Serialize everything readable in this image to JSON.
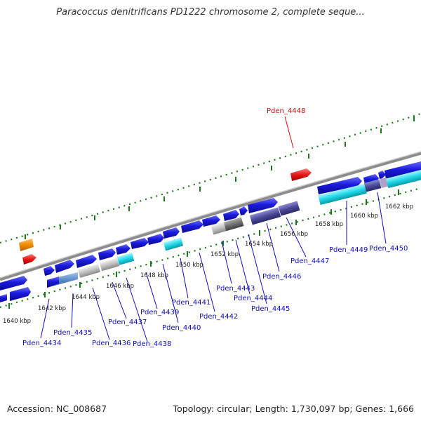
{
  "title": "Paracoccus denitrificans PD1222 chromosome 2, complete seque...",
  "footer": {
    "accession": "Accession: NC_008687",
    "topology": "Topology: circular; Length: 1,730,097 bp; Genes: 1,666"
  },
  "colors": {
    "forward_gene": "#1a1adc",
    "cyan_gene": "#20d8e8",
    "gray_gene": "#c0c0c0",
    "dark_gray_gene": "#707070",
    "slate_gene": "#4a4a9a",
    "orange_gene": "#f08c00",
    "red_gene": "#e81818",
    "backbone": "#9a9a9a",
    "tick": "#1a7a1a",
    "label_blue": "#1010c0",
    "label_red": "#cc1010"
  },
  "kbp_ticks": [
    "1640 kbp",
    "1642 kbp",
    "1644 kbp",
    "1646 kbp",
    "1648 kbp",
    "1650 kbp",
    "1652 kbp",
    "1654 kbp",
    "1656 kbp",
    "1658 kbp",
    "1660 kbp",
    "1662 kbp"
  ],
  "gene_labels": [
    {
      "text": "Pden_4434",
      "highlight": false
    },
    {
      "text": "Pden_4435",
      "highlight": false
    },
    {
      "text": "Pden_4436",
      "highlight": false
    },
    {
      "text": "Pden_4437",
      "highlight": false
    },
    {
      "text": "Pden_4438",
      "highlight": false
    },
    {
      "text": "Pden_4439",
      "highlight": false
    },
    {
      "text": "Pden_4440",
      "highlight": false
    },
    {
      "text": "Pden_4441",
      "highlight": false
    },
    {
      "text": "Pden_4442",
      "highlight": false
    },
    {
      "text": "Pden_4443",
      "highlight": false
    },
    {
      "text": "Pden_4444",
      "highlight": false
    },
    {
      "text": "Pden_4445",
      "highlight": false
    },
    {
      "text": "Pden_4446",
      "highlight": false
    },
    {
      "text": "Pden_4447",
      "highlight": false
    },
    {
      "text": "Pden_4449",
      "highlight": false
    },
    {
      "text": "Pden_4450",
      "highlight": false
    },
    {
      "text": "Pden_4448",
      "highlight": true
    }
  ]
}
